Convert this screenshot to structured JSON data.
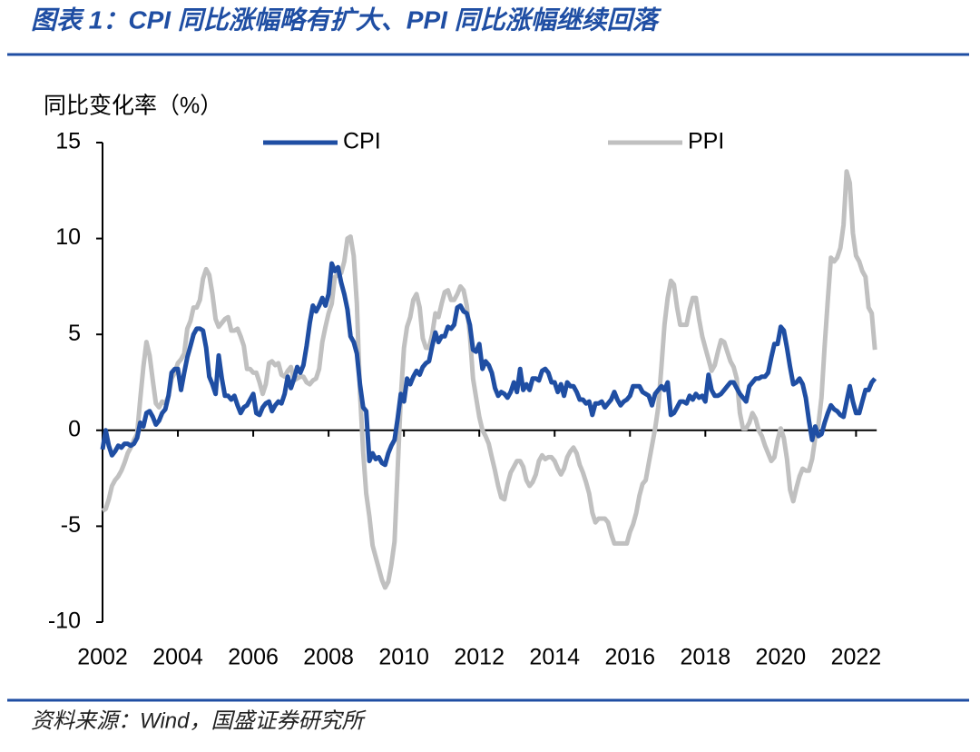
{
  "header": {
    "title": "图表 1：CPI 同比涨幅略有扩大、PPI 同比涨幅继续回落"
  },
  "footer": {
    "source": "资料来源：Wind，国盛证券研究所"
  },
  "chart_data": {
    "type": "line",
    "y_label": "同比变化率（%）",
    "ylim": [
      -10,
      15
    ],
    "yticks": [
      15,
      10,
      5,
      0,
      -5,
      -10
    ],
    "categories": [
      "2002",
      null,
      null,
      null,
      null,
      null,
      null,
      null,
      null,
      null,
      null,
      null,
      null,
      null,
      null,
      null,
      null,
      null,
      null,
      null,
      null,
      null,
      null,
      null,
      "2004",
      null,
      null,
      null,
      null,
      null,
      null,
      null,
      null,
      null,
      null,
      null,
      null,
      null,
      null,
      null,
      null,
      null,
      null,
      null,
      null,
      null,
      null,
      null,
      "2006",
      null,
      null,
      null,
      null,
      null,
      null,
      null,
      null,
      null,
      null,
      null,
      null,
      null,
      null,
      null,
      null,
      null,
      null,
      null,
      null,
      null,
      null,
      null,
      "2008",
      null,
      null,
      null,
      null,
      null,
      null,
      null,
      null,
      null,
      null,
      null,
      null,
      null,
      null,
      null,
      null,
      null,
      null,
      null,
      null,
      null,
      null,
      null,
      "2010",
      null,
      null,
      null,
      null,
      null,
      null,
      null,
      null,
      null,
      null,
      null,
      null,
      null,
      null,
      null,
      null,
      null,
      null,
      null,
      null,
      null,
      null,
      null,
      "2012",
      null,
      null,
      null,
      null,
      null,
      null,
      null,
      null,
      null,
      null,
      null,
      null,
      null,
      null,
      null,
      null,
      null,
      null,
      null,
      null,
      null,
      null,
      null,
      "2014",
      null,
      null,
      null,
      null,
      null,
      null,
      null,
      null,
      null,
      null,
      null,
      null,
      null,
      null,
      null,
      null,
      null,
      null,
      null,
      null,
      null,
      null,
      null,
      "2016",
      null,
      null,
      null,
      null,
      null,
      null,
      null,
      null,
      null,
      null,
      null,
      null,
      null,
      null,
      null,
      null,
      null,
      null,
      null,
      null,
      null,
      null,
      null,
      "2018",
      null,
      null,
      null,
      null,
      null,
      null,
      null,
      null,
      null,
      null,
      null,
      null,
      null,
      null,
      null,
      null,
      null,
      null,
      null,
      null,
      null,
      null,
      null,
      "2020",
      null,
      null,
      null,
      null,
      null,
      null,
      null,
      null,
      null,
      null,
      null,
      null,
      null,
      null,
      null,
      null,
      null,
      null,
      null,
      null,
      null,
      null,
      null,
      "2022",
      null,
      null,
      null,
      null,
      null,
      null
    ],
    "series": [
      {
        "name": "CPI",
        "color": "#1f4ea3",
        "values": [
          -1.0,
          0.0,
          -0.8,
          -1.3,
          -1.1,
          -0.8,
          -0.9,
          -0.7,
          -0.7,
          -0.8,
          -0.7,
          -0.4,
          0.4,
          0.2,
          0.9,
          1.0,
          0.7,
          0.3,
          0.5,
          0.9,
          1.1,
          1.8,
          3.0,
          3.2,
          3.2,
          2.1,
          3.0,
          3.8,
          4.4,
          5.0,
          5.3,
          5.3,
          5.2,
          4.3,
          2.8,
          2.4,
          1.9,
          3.9,
          2.7,
          1.8,
          1.8,
          1.6,
          1.8,
          1.3,
          0.9,
          1.2,
          1.3,
          1.6,
          1.9,
          0.9,
          0.8,
          1.2,
          1.4,
          1.5,
          1.0,
          1.3,
          1.5,
          1.4,
          1.9,
          2.8,
          2.2,
          2.7,
          3.3,
          3.0,
          3.4,
          4.4,
          5.6,
          6.5,
          6.2,
          6.5,
          6.9,
          6.5,
          7.1,
          8.7,
          8.3,
          8.5,
          7.7,
          7.1,
          6.3,
          4.9,
          4.6,
          4.0,
          2.4,
          1.2,
          1.0,
          -1.6,
          -1.2,
          -1.5,
          -1.4,
          -1.7,
          -1.8,
          -1.2,
          -0.8,
          -0.5,
          0.6,
          1.9,
          1.5,
          2.7,
          2.4,
          2.8,
          3.1,
          2.9,
          3.3,
          3.5,
          3.6,
          4.4,
          5.1,
          4.6,
          4.9,
          4.9,
          5.4,
          5.3,
          5.5,
          6.4,
          6.5,
          6.2,
          6.1,
          5.5,
          4.2,
          4.1,
          4.5,
          3.2,
          3.6,
          3.4,
          3.0,
          2.2,
          1.8,
          2.0,
          1.9,
          1.7,
          2.0,
          2.5,
          2.0,
          3.2,
          2.1,
          2.4,
          2.1,
          2.7,
          2.7,
          2.6,
          3.1,
          3.2,
          3.0,
          2.5,
          2.5,
          2.0,
          2.4,
          1.8,
          2.5,
          2.3,
          2.3,
          2.0,
          1.6,
          1.6,
          1.4,
          1.5,
          0.8,
          1.4,
          1.4,
          1.5,
          1.2,
          1.4,
          1.6,
          2.0,
          1.6,
          1.3,
          1.5,
          1.6,
          1.8,
          2.3,
          2.3,
          2.3,
          2.0,
          1.9,
          1.8,
          1.3,
          1.9,
          2.1,
          2.3,
          2.1,
          2.5,
          0.8,
          0.9,
          1.2,
          1.5,
          1.5,
          1.4,
          1.8,
          1.6,
          1.9,
          1.7,
          1.8,
          1.5,
          2.9,
          2.1,
          1.8,
          1.8,
          1.9,
          2.1,
          2.3,
          2.5,
          2.5,
          2.2,
          1.9,
          1.7,
          1.5,
          2.3,
          2.5,
          2.7,
          2.7,
          2.8,
          2.8,
          3.0,
          3.8,
          4.5,
          4.5,
          5.4,
          5.2,
          4.3,
          3.3,
          2.4,
          2.5,
          2.7,
          2.4,
          1.7,
          0.5,
          -0.5,
          0.2,
          -0.3,
          -0.2,
          0.4,
          0.9,
          1.3,
          1.1,
          1.0,
          0.8,
          0.7,
          1.5,
          2.3,
          1.5,
          0.9,
          0.9,
          1.5,
          2.1,
          2.1,
          2.5,
          2.7
        ]
      },
      {
        "name": "PPI",
        "color": "#c0c0c0",
        "values": [
          -4.2,
          -4.1,
          -3.6,
          -2.9,
          -2.6,
          -2.4,
          -2.1,
          -1.7,
          -1.2,
          -0.9,
          -0.5,
          -0.2,
          1.6,
          3.3,
          4.6,
          3.9,
          2.6,
          1.4,
          1.2,
          1.5,
          1.4,
          1.8,
          2.7,
          3.0,
          3.5,
          3.7,
          4.0,
          5.3,
          5.7,
          6.4,
          6.4,
          6.8,
          7.9,
          8.4,
          8.1,
          7.1,
          5.8,
          5.4,
          5.6,
          5.8,
          5.9,
          5.2,
          5.2,
          5.3,
          4.9,
          4.4,
          3.2,
          3.2,
          3.0,
          3.0,
          2.5,
          1.9,
          2.4,
          3.5,
          3.6,
          3.4,
          3.5,
          2.9,
          2.8,
          3.1,
          3.3,
          2.6,
          2.7,
          2.8,
          2.8,
          2.5,
          2.4,
          2.6,
          2.7,
          3.2,
          4.6,
          5.4,
          6.1,
          6.6,
          8.0,
          8.1,
          8.2,
          8.8,
          10.0,
          10.1,
          9.1,
          6.6,
          2.0,
          -1.1,
          -3.3,
          -4.5,
          -6.0,
          -6.6,
          -7.2,
          -7.8,
          -8.2,
          -7.9,
          -7.0,
          -5.8,
          -2.1,
          1.7,
          4.3,
          5.4,
          5.9,
          6.8,
          7.1,
          6.4,
          4.8,
          4.3,
          4.3,
          5.0,
          6.1,
          5.9,
          6.6,
          7.2,
          7.3,
          6.8,
          6.8,
          7.1,
          7.5,
          7.3,
          6.5,
          5.0,
          2.7,
          1.7,
          0.7,
          0.0,
          -0.3,
          -0.7,
          -1.4,
          -2.1,
          -2.9,
          -3.5,
          -3.6,
          -2.8,
          -2.2,
          -1.9,
          -1.6,
          -1.6,
          -1.9,
          -2.6,
          -2.9,
          -2.7,
          -2.3,
          -1.6,
          -1.3,
          -1.5,
          -1.4,
          -1.4,
          -1.6,
          -2.0,
          -2.3,
          -2.0,
          -1.4,
          -1.1,
          -0.9,
          -1.2,
          -1.8,
          -2.2,
          -2.7,
          -3.3,
          -4.3,
          -4.8,
          -4.6,
          -4.6,
          -4.6,
          -4.8,
          -5.4,
          -5.9,
          -5.9,
          -5.9,
          -5.9,
          -5.9,
          -5.3,
          -4.9,
          -4.3,
          -3.4,
          -2.8,
          -2.6,
          -1.7,
          -0.8,
          0.1,
          1.2,
          3.3,
          5.5,
          6.9,
          7.8,
          7.6,
          6.4,
          5.5,
          5.5,
          5.5,
          6.3,
          6.9,
          6.9,
          5.8,
          4.9,
          4.3,
          3.7,
          3.1,
          3.4,
          4.1,
          4.7,
          4.6,
          4.1,
          3.6,
          3.3,
          2.7,
          0.9,
          0.1,
          0.1,
          0.4,
          0.9,
          0.6,
          0.0,
          -0.3,
          -0.8,
          -1.2,
          -1.6,
          -1.4,
          -0.5,
          0.1,
          -0.4,
          -1.5,
          -3.1,
          -3.7,
          -3.0,
          -2.4,
          -2.0,
          -2.1,
          -2.1,
          -1.5,
          -0.4,
          0.3,
          1.7,
          4.4,
          6.8,
          9.0,
          8.8,
          9.0,
          9.5,
          10.7,
          13.5,
          12.9,
          10.3,
          9.1,
          8.8,
          8.3,
          8.0,
          6.4,
          6.1,
          4.2
        ]
      }
    ]
  }
}
